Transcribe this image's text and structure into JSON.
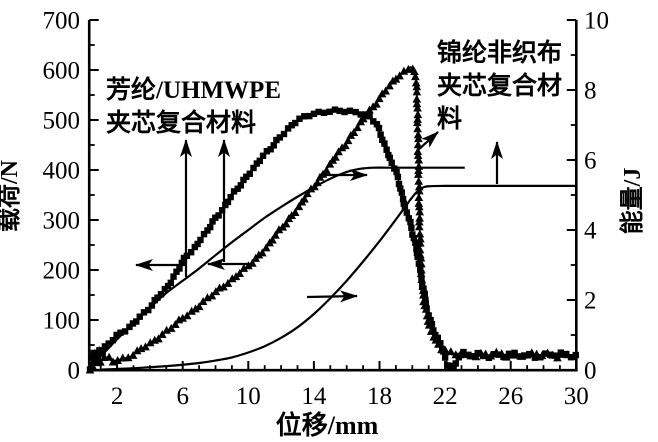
{
  "figure": {
    "xlabel": "位移/mm",
    "ylabel_left": "载荷/N",
    "ylabel_right": "能量/J"
  },
  "annotations": {
    "aramid": {
      "lines": [
        "芳纶/UHMWPE",
        "夹芯复合材料"
      ]
    },
    "nylon": {
      "lines": [
        "锦纶非织布",
        "夹芯复合材",
        "料"
      ]
    },
    "arrows": [
      {
        "name": "aramid-label-arrow-left",
        "from": [
          186,
          277
        ],
        "to": [
          186,
          140
        ]
      },
      {
        "name": "aramid-label-arrow-right",
        "from": [
          224,
          262
        ],
        "to": [
          224,
          140
        ]
      },
      {
        "name": "left-axis-arrow-square-curve",
        "from": [
          181,
          265
        ],
        "to": [
          136,
          265
        ]
      },
      {
        "name": "left-axis-arrow-triangle-curve",
        "from": [
          251,
          264
        ],
        "to": [
          208,
          264
        ]
      },
      {
        "name": "right-axis-arrow-aramid-energy",
        "from": [
          324,
          175
        ],
        "to": [
          367,
          175
        ]
      },
      {
        "name": "right-axis-arrow-nylon-energy",
        "from": [
          307,
          297
        ],
        "to": [
          357,
          296
        ]
      },
      {
        "name": "nylon-label-arrow-diagonal",
        "from": [
          418,
          150
        ],
        "to": [
          438,
          132
        ]
      },
      {
        "name": "nylon-label-arrow-up",
        "from": [
          497,
          184
        ],
        "to": [
          497,
          142
        ]
      }
    ]
  },
  "colors": {
    "foreground": "#000000",
    "background": "#ffffff"
  },
  "chart_data": {
    "type": "line",
    "title": "",
    "xlabel": "位移/mm",
    "ylabel_left": "载荷/N",
    "ylabel_right": "能量/J",
    "x_range": [
      0.3,
      30
    ],
    "yleft_range": [
      0,
      700
    ],
    "yright_range": [
      0,
      10
    ],
    "x_ticks_major": [
      2,
      6,
      10,
      14,
      18,
      22,
      26,
      30
    ],
    "x_minor_step": 1,
    "yleft_ticks_major": [
      0,
      100,
      200,
      300,
      400,
      500,
      600,
      700
    ],
    "yleft_minor_step": 50,
    "yright_ticks_major": [
      0,
      2,
      4,
      6,
      8,
      10
    ],
    "yright_minor_step": 1,
    "grid": false,
    "legend_position": "annotated-with-arrows",
    "series": [
      {
        "name": "芳纶/UHMWPE夹芯复合材料 载荷",
        "axis": "left",
        "marker": "square",
        "unit": "N",
        "points": [
          [
            0.35,
            2
          ],
          [
            0.5,
            22
          ],
          [
            0.65,
            38
          ],
          [
            0.8,
            26
          ],
          [
            0.95,
            44
          ],
          [
            1.1,
            34
          ],
          [
            1.3,
            48
          ],
          [
            1.5,
            55
          ],
          [
            1.7,
            60
          ],
          [
            2,
            68
          ],
          [
            2.3,
            75
          ],
          [
            2.6,
            80
          ],
          [
            3,
            95
          ],
          [
            3.4,
            107
          ],
          [
            3.8,
            118
          ],
          [
            4.2,
            132
          ],
          [
            4.6,
            150
          ],
          [
            5,
            165
          ],
          [
            5.4,
            182
          ],
          [
            5.8,
            205
          ],
          [
            6.2,
            228
          ],
          [
            6.6,
            240
          ],
          [
            7,
            258
          ],
          [
            7.4,
            272
          ],
          [
            7.8,
            295
          ],
          [
            8.2,
            312
          ],
          [
            8.6,
            330
          ],
          [
            9,
            348
          ],
          [
            9.4,
            365
          ],
          [
            9.8,
            383
          ],
          [
            10.2,
            400
          ],
          [
            10.6,
            415
          ],
          [
            11,
            430
          ],
          [
            11.4,
            445
          ],
          [
            11.8,
            462
          ],
          [
            12.2,
            475
          ],
          [
            12.6,
            487
          ],
          [
            13,
            498
          ],
          [
            13.4,
            506
          ],
          [
            13.8,
            512
          ],
          [
            14.2,
            515
          ],
          [
            14.6,
            516
          ],
          [
            15,
            517
          ],
          [
            15.4,
            518
          ],
          [
            15.8,
            517
          ],
          [
            16.2,
            517
          ],
          [
            16.6,
            516
          ],
          [
            17,
            513
          ],
          [
            17.4,
            507
          ],
          [
            17.8,
            492
          ],
          [
            18.1,
            470
          ],
          [
            18.4,
            443
          ],
          [
            18.7,
            418
          ],
          [
            19,
            396
          ],
          [
            19.25,
            370
          ],
          [
            19.5,
            330
          ],
          [
            19.7,
            312
          ],
          [
            19.9,
            290
          ],
          [
            20.1,
            265
          ],
          [
            20.3,
            232
          ],
          [
            20.5,
            196
          ],
          [
            20.7,
            158
          ],
          [
            20.9,
            120
          ],
          [
            21.2,
            90
          ],
          [
            21.5,
            65
          ],
          [
            21.8,
            45
          ],
          [
            22,
            25
          ],
          [
            22.2,
            8
          ],
          [
            22.45,
            3
          ],
          [
            22.7,
            18
          ],
          [
            22.9,
            28
          ],
          [
            23.2,
            32
          ],
          [
            23.6,
            28
          ],
          [
            24,
            31
          ],
          [
            24.5,
            29
          ],
          [
            25,
            31
          ],
          [
            25.5,
            28
          ],
          [
            26,
            30
          ],
          [
            26.5,
            29
          ],
          [
            27,
            31
          ],
          [
            27.5,
            28
          ],
          [
            28,
            30
          ],
          [
            28.5,
            29
          ],
          [
            29,
            31
          ],
          [
            29.5,
            29
          ],
          [
            30,
            31
          ]
        ]
      },
      {
        "name": "锦纶非织布夹芯复合材料 载荷",
        "axis": "left",
        "marker": "triangle",
        "unit": "N",
        "points": [
          [
            0.35,
            1
          ],
          [
            0.5,
            12
          ],
          [
            0.7,
            20
          ],
          [
            0.9,
            10
          ],
          [
            1.1,
            22
          ],
          [
            1.4,
            26
          ],
          [
            1.7,
            18
          ],
          [
            2,
            20
          ],
          [
            2.4,
            23
          ],
          [
            2.8,
            27
          ],
          [
            3.2,
            35
          ],
          [
            3.6,
            44
          ],
          [
            4,
            53
          ],
          [
            4.4,
            62
          ],
          [
            4.8,
            72
          ],
          [
            5.2,
            82
          ],
          [
            5.6,
            92
          ],
          [
            6,
            103
          ],
          [
            6.4,
            113
          ],
          [
            6.8,
            124
          ],
          [
            7.2,
            134
          ],
          [
            7.6,
            145
          ],
          [
            8,
            155
          ],
          [
            8.4,
            165
          ],
          [
            8.8,
            176
          ],
          [
            9.2,
            187
          ],
          [
            9.6,
            197
          ],
          [
            10,
            207
          ],
          [
            10.4,
            220
          ],
          [
            10.8,
            234
          ],
          [
            11.2,
            250
          ],
          [
            11.6,
            266
          ],
          [
            12,
            282
          ],
          [
            12.4,
            298
          ],
          [
            12.8,
            315
          ],
          [
            13.2,
            332
          ],
          [
            13.6,
            350
          ],
          [
            14,
            367
          ],
          [
            14.4,
            385
          ],
          [
            14.8,
            403
          ],
          [
            15.2,
            420
          ],
          [
            15.6,
            438
          ],
          [
            16,
            456
          ],
          [
            16.4,
            474
          ],
          [
            16.8,
            492
          ],
          [
            17.2,
            510
          ],
          [
            17.6,
            527
          ],
          [
            18,
            543
          ],
          [
            18.4,
            560
          ],
          [
            18.8,
            575
          ],
          [
            19.1,
            585
          ],
          [
            19.4,
            594
          ],
          [
            19.7,
            602
          ],
          [
            19.9,
            606
          ],
          [
            20.05,
            604
          ],
          [
            20.2,
            590
          ],
          [
            20.3,
            540
          ],
          [
            20.35,
            460
          ],
          [
            20.4,
            370
          ],
          [
            20.45,
            280
          ],
          [
            20.55,
            195
          ],
          [
            20.7,
            140
          ],
          [
            20.9,
            105
          ],
          [
            21.1,
            82
          ],
          [
            21.4,
            60
          ],
          [
            21.7,
            46
          ],
          [
            22,
            36
          ],
          [
            22.4,
            31
          ],
          [
            22.8,
            33
          ],
          [
            23.2,
            29
          ],
          [
            23.6,
            32
          ],
          [
            24,
            29
          ],
          [
            24.4,
            31
          ],
          [
            24.8,
            29
          ],
          [
            25.2,
            32
          ],
          [
            25.6,
            29
          ],
          [
            26,
            31
          ],
          [
            26.4,
            29
          ],
          [
            26.8,
            32
          ],
          [
            27.2,
            29
          ],
          [
            27.6,
            31
          ],
          [
            28,
            29
          ],
          [
            28.4,
            31
          ],
          [
            28.8,
            29
          ],
          [
            29.2,
            31
          ],
          [
            29.6,
            29
          ],
          [
            30,
            30
          ]
        ]
      },
      {
        "name": "芳纶/UHMWPE夹芯复合材料 能量",
        "axis": "right",
        "marker": "none",
        "unit": "J",
        "points": [
          [
            0.35,
            0
          ],
          [
            1,
            0.38
          ],
          [
            2,
            0.88
          ],
          [
            3,
            1.32
          ],
          [
            4,
            1.78
          ],
          [
            5,
            2.2
          ],
          [
            6,
            2.55
          ],
          [
            7,
            2.9
          ],
          [
            8,
            3.28
          ],
          [
            9,
            3.65
          ],
          [
            10,
            4.0
          ],
          [
            11,
            4.35
          ],
          [
            12,
            4.66
          ],
          [
            13,
            4.95
          ],
          [
            14,
            5.22
          ],
          [
            14.8,
            5.42
          ],
          [
            15.5,
            5.57
          ],
          [
            16,
            5.66
          ],
          [
            16.5,
            5.72
          ],
          [
            17,
            5.76
          ],
          [
            17.6,
            5.78
          ],
          [
            19,
            5.78
          ],
          [
            21,
            5.78
          ],
          [
            23.2,
            5.78
          ]
        ]
      },
      {
        "name": "锦纶非织布夹芯复合材料 能量",
        "axis": "right",
        "marker": "none",
        "unit": "J",
        "points": [
          [
            1,
            0.01
          ],
          [
            2,
            0.03
          ],
          [
            3,
            0.05
          ],
          [
            4,
            0.08
          ],
          [
            5,
            0.11
          ],
          [
            6,
            0.15
          ],
          [
            7,
            0.2
          ],
          [
            8,
            0.27
          ],
          [
            9,
            0.36
          ],
          [
            10,
            0.5
          ],
          [
            11,
            0.68
          ],
          [
            12,
            0.92
          ],
          [
            13,
            1.22
          ],
          [
            14,
            1.6
          ],
          [
            15,
            2.05
          ],
          [
            16,
            2.55
          ],
          [
            17,
            3.1
          ],
          [
            18,
            3.68
          ],
          [
            19,
            4.3
          ],
          [
            19.7,
            4.75
          ],
          [
            20.2,
            5.05
          ],
          [
            20.6,
            5.2
          ],
          [
            21,
            5.25
          ],
          [
            22,
            5.26
          ],
          [
            24,
            5.26
          ],
          [
            27,
            5.26
          ],
          [
            30,
            5.26
          ]
        ]
      }
    ]
  }
}
